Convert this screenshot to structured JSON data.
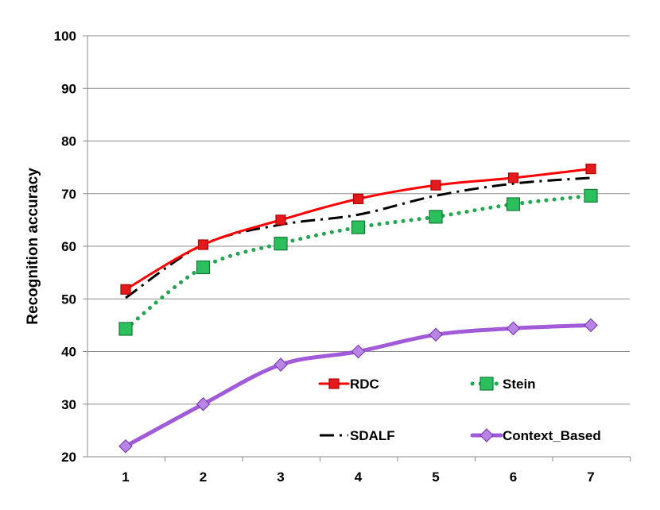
{
  "chart_data": {
    "type": "line",
    "title": "",
    "xlabel": "",
    "ylabel": "Recognition accuracy",
    "categories": [
      "1",
      "2",
      "3",
      "4",
      "5",
      "6",
      "7"
    ],
    "ylim": [
      20,
      100
    ],
    "yticks": [
      "20",
      "30",
      "40",
      "50",
      "60",
      "70",
      "80",
      "90",
      "100"
    ],
    "grid": "horizontal",
    "legend_position": "bottom-right (inside plot)",
    "series": [
      {
        "name": "RDC",
        "values": [
          51.8,
          60.3,
          65.0,
          69.0,
          71.6,
          73.0,
          74.7
        ],
        "color": "#ff0000",
        "line": "solid",
        "marker": "square",
        "marker_color": "#e31a1c"
      },
      {
        "name": "Stein",
        "values": [
          44.3,
          56.0,
          60.5,
          63.6,
          65.6,
          68.0,
          69.6
        ],
        "color": "#1fa84f",
        "line": "dotted",
        "marker": "square",
        "marker_color": "#2bbf5e"
      },
      {
        "name": "SDALF",
        "values": [
          50.2,
          60.3,
          64.1,
          66.0,
          69.6,
          71.9,
          73.0
        ],
        "color": "#000000",
        "line": "dash-dot",
        "marker": "none"
      },
      {
        "name": "Context_Based",
        "values": [
          22.0,
          30.0,
          37.5,
          40.0,
          43.2,
          44.4,
          45.0
        ],
        "color": "#a15bd8",
        "line": "solid",
        "marker": "diamond",
        "marker_color": "#b884e6"
      }
    ]
  }
}
